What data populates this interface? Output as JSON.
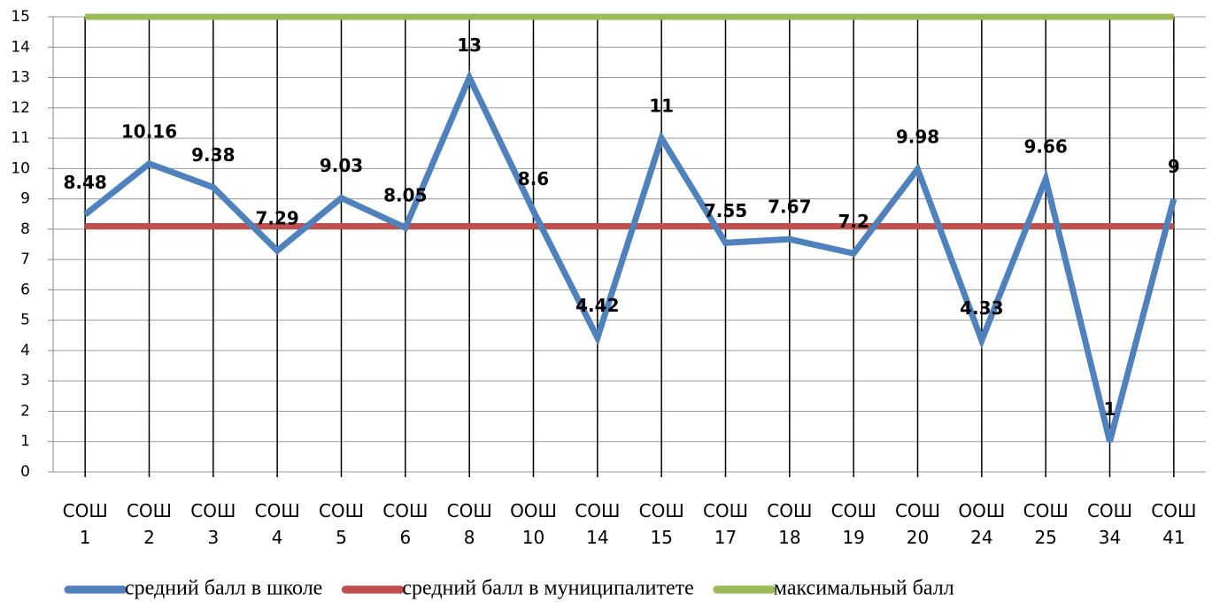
{
  "chart_data": {
    "type": "line",
    "categories": [
      "СОШ 1",
      "СОШ 2",
      "СОШ 3",
      "СОШ 4",
      "СОШ 5",
      "СОШ 6",
      "СОШ 8",
      "ООШ 10",
      "СОШ 14",
      "СОШ 15",
      "СОШ 17",
      "СОШ 18",
      "СОШ 19",
      "СОШ 20",
      "ООШ 24",
      "СОШ 25",
      "СОШ 34",
      "СОШ 41"
    ],
    "series": [
      {
        "name": "средний балл в школе",
        "color": "#4f81bd",
        "values": [
          8.48,
          10.16,
          9.38,
          7.29,
          9.03,
          8.05,
          13,
          8.6,
          4.42,
          11,
          7.55,
          7.67,
          7.2,
          9.98,
          4.33,
          9.66,
          1,
          9
        ],
        "data_labels": true
      },
      {
        "name": "средний балл в муниципалитете",
        "color": "#c0504d",
        "values": [
          8.1,
          8.1,
          8.1,
          8.1,
          8.1,
          8.1,
          8.1,
          8.1,
          8.1,
          8.1,
          8.1,
          8.1,
          8.1,
          8.1,
          8.1,
          8.1,
          8.1,
          8.1
        ]
      },
      {
        "name": "максимальный балл",
        "color": "#9bbb59",
        "values": [
          15,
          15,
          15,
          15,
          15,
          15,
          15,
          15,
          15,
          15,
          15,
          15,
          15,
          15,
          15,
          15,
          15,
          15
        ]
      }
    ],
    "ylim": [
      0,
      15
    ],
    "yticks": [
      0,
      1,
      2,
      3,
      4,
      5,
      6,
      7,
      8,
      9,
      10,
      11,
      12,
      13,
      14,
      15
    ],
    "grid": true,
    "legend": "bottom"
  }
}
